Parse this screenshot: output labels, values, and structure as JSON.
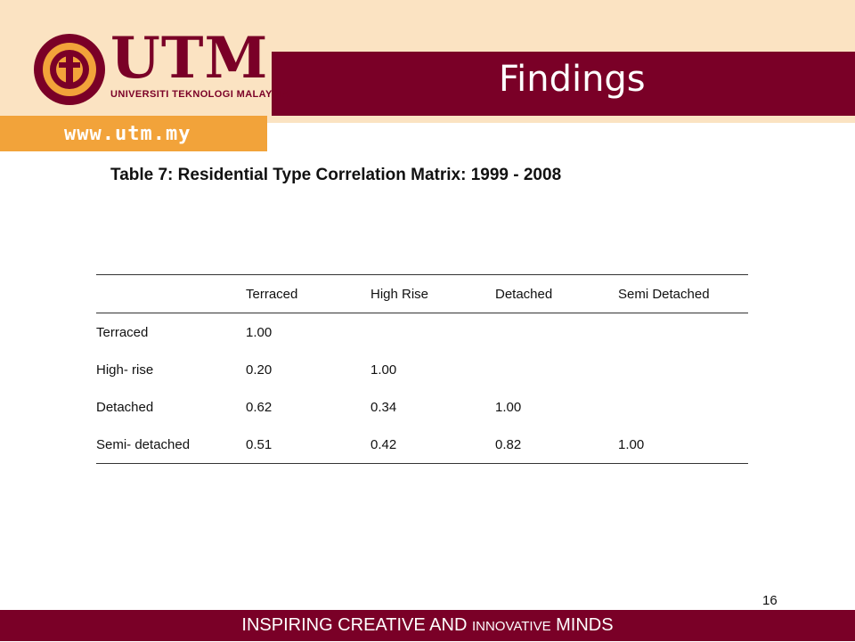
{
  "header": {
    "title": "Findings",
    "brand": "UTM",
    "brand_sub": "UNIVERSITI TEKNOLOGI MALAYSIA",
    "url": "www.utm.my"
  },
  "caption": "Table 7: Residential Type Correlation Matrix: 1999 - 2008",
  "table": {
    "headers": [
      "",
      "Terraced",
      "High Rise",
      "Detached",
      "Semi Detached"
    ],
    "rows": [
      [
        "Terraced",
        "1.00",
        "",
        "",
        ""
      ],
      [
        "High- rise",
        "0.20",
        "1.00",
        "",
        ""
      ],
      [
        "Detached",
        "0.62",
        "0.34",
        "1.00",
        ""
      ],
      [
        "Semi- detached",
        "0.51",
        "0.42",
        "0.82",
        "1.00"
      ]
    ]
  },
  "page_number": "16",
  "footer": {
    "part1": "INSPIRING CREATIVE AND ",
    "part2": "INNOVATIVE",
    "part3": " MINDS"
  },
  "colors": {
    "maroon": "#7a0027",
    "cream": "#fbe3c2",
    "orange": "#f2a33a"
  }
}
